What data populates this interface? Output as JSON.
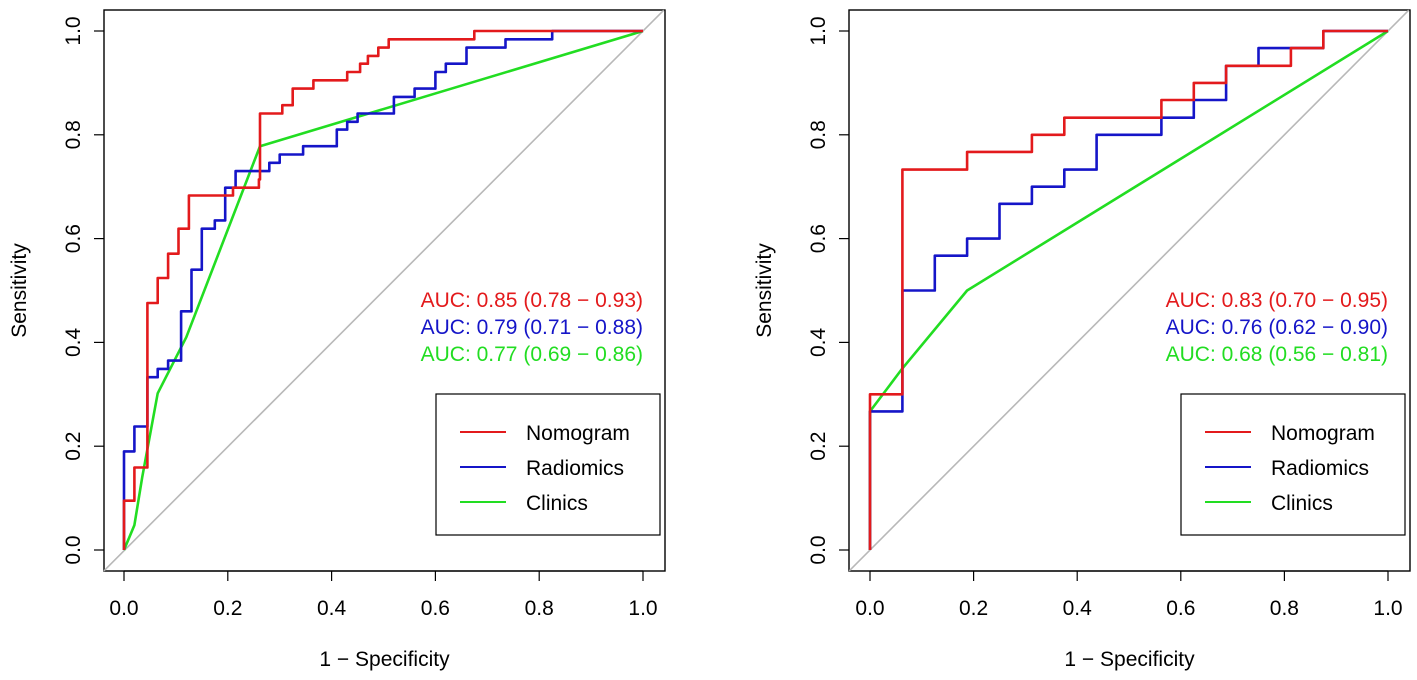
{
  "chart_data": [
    {
      "type": "line",
      "xlabel": "1 − Specificity",
      "ylabel": "Sensitivity",
      "xlim": [
        0,
        1
      ],
      "ylim": [
        0,
        1
      ],
      "xticks": [
        "0.0",
        "0.2",
        "0.4",
        "0.6",
        "0.8",
        "1.0"
      ],
      "yticks": [
        "0.0",
        "0.2",
        "0.4",
        "0.6",
        "0.8",
        "1.0"
      ],
      "grid": false,
      "legend_position": "bottom-right",
      "reference_line": "diagonal",
      "annotations": [
        {
          "text": "AUC: 0.85 (0.78 − 0.93)",
          "color": "#e31a1c"
        },
        {
          "text": "AUC: 0.79 (0.71 − 0.88)",
          "color": "#1515c8"
        },
        {
          "text": "AUC: 0.77 (0.69 − 0.86)",
          "color": "#22dd22"
        }
      ],
      "series": [
        {
          "name": "Nomogram",
          "color": "#e31a1c",
          "points": [
            [
              0,
              0
            ],
            [
              0,
              0.095
            ],
            [
              0.02,
              0.095
            ],
            [
              0.02,
              0.159
            ],
            [
              0.045,
              0.159
            ],
            [
              0.045,
              0.476
            ],
            [
              0.065,
              0.476
            ],
            [
              0.065,
              0.524
            ],
            [
              0.085,
              0.524
            ],
            [
              0.085,
              0.571
            ],
            [
              0.105,
              0.571
            ],
            [
              0.105,
              0.619
            ],
            [
              0.125,
              0.619
            ],
            [
              0.125,
              0.683
            ],
            [
              0.21,
              0.683
            ],
            [
              0.21,
              0.698
            ],
            [
              0.26,
              0.698
            ],
            [
              0.26,
              0.714
            ],
            [
              0.262,
              0.714
            ],
            [
              0.262,
              0.841
            ],
            [
              0.305,
              0.841
            ],
            [
              0.305,
              0.857
            ],
            [
              0.325,
              0.857
            ],
            [
              0.325,
              0.889
            ],
            [
              0.365,
              0.889
            ],
            [
              0.365,
              0.905
            ],
            [
              0.43,
              0.905
            ],
            [
              0.43,
              0.921
            ],
            [
              0.455,
              0.921
            ],
            [
              0.455,
              0.937
            ],
            [
              0.47,
              0.937
            ],
            [
              0.47,
              0.952
            ],
            [
              0.49,
              0.952
            ],
            [
              0.49,
              0.968
            ],
            [
              0.51,
              0.968
            ],
            [
              0.51,
              0.984
            ],
            [
              0.675,
              0.984
            ],
            [
              0.675,
              1
            ],
            [
              1,
              1
            ]
          ]
        },
        {
          "name": "Radiomics",
          "color": "#1515c8",
          "points": [
            [
              0,
              0
            ],
            [
              0,
              0.19
            ],
            [
              0.02,
              0.19
            ],
            [
              0.02,
              0.238
            ],
            [
              0.045,
              0.238
            ],
            [
              0.045,
              0.333
            ],
            [
              0.065,
              0.333
            ],
            [
              0.065,
              0.349
            ],
            [
              0.085,
              0.349
            ],
            [
              0.085,
              0.365
            ],
            [
              0.11,
              0.365
            ],
            [
              0.11,
              0.46
            ],
            [
              0.13,
              0.46
            ],
            [
              0.13,
              0.54
            ],
            [
              0.15,
              0.54
            ],
            [
              0.15,
              0.619
            ],
            [
              0.175,
              0.619
            ],
            [
              0.175,
              0.635
            ],
            [
              0.195,
              0.635
            ],
            [
              0.195,
              0.698
            ],
            [
              0.215,
              0.698
            ],
            [
              0.215,
              0.73
            ],
            [
              0.28,
              0.73
            ],
            [
              0.28,
              0.746
            ],
            [
              0.3,
              0.746
            ],
            [
              0.3,
              0.762
            ],
            [
              0.345,
              0.762
            ],
            [
              0.345,
              0.778
            ],
            [
              0.41,
              0.778
            ],
            [
              0.41,
              0.81
            ],
            [
              0.43,
              0.81
            ],
            [
              0.43,
              0.825
            ],
            [
              0.45,
              0.825
            ],
            [
              0.45,
              0.841
            ],
            [
              0.52,
              0.841
            ],
            [
              0.52,
              0.873
            ],
            [
              0.56,
              0.873
            ],
            [
              0.56,
              0.889
            ],
            [
              0.6,
              0.889
            ],
            [
              0.6,
              0.921
            ],
            [
              0.62,
              0.921
            ],
            [
              0.62,
              0.937
            ],
            [
              0.66,
              0.937
            ],
            [
              0.66,
              0.968
            ],
            [
              0.735,
              0.968
            ],
            [
              0.735,
              0.984
            ],
            [
              0.825,
              0.984
            ],
            [
              0.825,
              1
            ],
            [
              1,
              1
            ]
          ]
        },
        {
          "name": "Clinics",
          "color": "#22dd22",
          "points": [
            [
              0,
              0
            ],
            [
              0.02,
              0.048
            ],
            [
              0.035,
              0.14
            ],
            [
              0.065,
              0.302
            ],
            [
              0.12,
              0.41
            ],
            [
              0.262,
              0.778
            ],
            [
              1,
              1
            ]
          ]
        }
      ]
    },
    {
      "type": "line",
      "xlabel": "1 − Specificity",
      "ylabel": "Sensitivity",
      "xlim": [
        0,
        1
      ],
      "ylim": [
        0,
        1
      ],
      "xticks": [
        "0.0",
        "0.2",
        "0.4",
        "0.6",
        "0.8",
        "1.0"
      ],
      "yticks": [
        "0.0",
        "0.2",
        "0.4",
        "0.6",
        "0.8",
        "1.0"
      ],
      "grid": false,
      "legend_position": "bottom-right",
      "reference_line": "diagonal",
      "annotations": [
        {
          "text": "AUC: 0.83 (0.70 − 0.95)",
          "color": "#e31a1c"
        },
        {
          "text": "AUC: 0.76 (0.62 − 0.90)",
          "color": "#1515c8"
        },
        {
          "text": "AUC: 0.68 (0.56 − 0.81)",
          "color": "#22dd22"
        }
      ],
      "series": [
        {
          "name": "Nomogram",
          "color": "#e31a1c",
          "points": [
            [
              0,
              0
            ],
            [
              0,
              0.3
            ],
            [
              0.0625,
              0.3
            ],
            [
              0.0625,
              0.733
            ],
            [
              0.1875,
              0.733
            ],
            [
              0.1875,
              0.767
            ],
            [
              0.3125,
              0.767
            ],
            [
              0.3125,
              0.8
            ],
            [
              0.375,
              0.8
            ],
            [
              0.375,
              0.833
            ],
            [
              0.5625,
              0.833
            ],
            [
              0.5625,
              0.867
            ],
            [
              0.625,
              0.867
            ],
            [
              0.625,
              0.9
            ],
            [
              0.6875,
              0.9
            ],
            [
              0.6875,
              0.933
            ],
            [
              0.8125,
              0.933
            ],
            [
              0.8125,
              0.967
            ],
            [
              0.875,
              0.967
            ],
            [
              0.875,
              1
            ],
            [
              1,
              1
            ]
          ]
        },
        {
          "name": "Radiomics",
          "color": "#1515c8",
          "points": [
            [
              0,
              0
            ],
            [
              0,
              0.267
            ],
            [
              0.0625,
              0.267
            ],
            [
              0.0625,
              0.5
            ],
            [
              0.125,
              0.5
            ],
            [
              0.125,
              0.567
            ],
            [
              0.1875,
              0.567
            ],
            [
              0.1875,
              0.6
            ],
            [
              0.25,
              0.6
            ],
            [
              0.25,
              0.667
            ],
            [
              0.3125,
              0.667
            ],
            [
              0.3125,
              0.7
            ],
            [
              0.375,
              0.7
            ],
            [
              0.375,
              0.733
            ],
            [
              0.4375,
              0.733
            ],
            [
              0.4375,
              0.8
            ],
            [
              0.5625,
              0.8
            ],
            [
              0.5625,
              0.833
            ],
            [
              0.625,
              0.833
            ],
            [
              0.625,
              0.867
            ],
            [
              0.6875,
              0.867
            ],
            [
              0.6875,
              0.933
            ],
            [
              0.75,
              0.933
            ],
            [
              0.75,
              0.967
            ],
            [
              0.875,
              0.967
            ],
            [
              0.875,
              1
            ],
            [
              1,
              1
            ]
          ]
        },
        {
          "name": "Clinics",
          "color": "#22dd22",
          "points": [
            [
              0,
              0
            ],
            [
              0,
              0.267
            ],
            [
              0.0625,
              0.35
            ],
            [
              0.1875,
              0.5
            ],
            [
              1,
              1
            ]
          ]
        }
      ]
    }
  ]
}
